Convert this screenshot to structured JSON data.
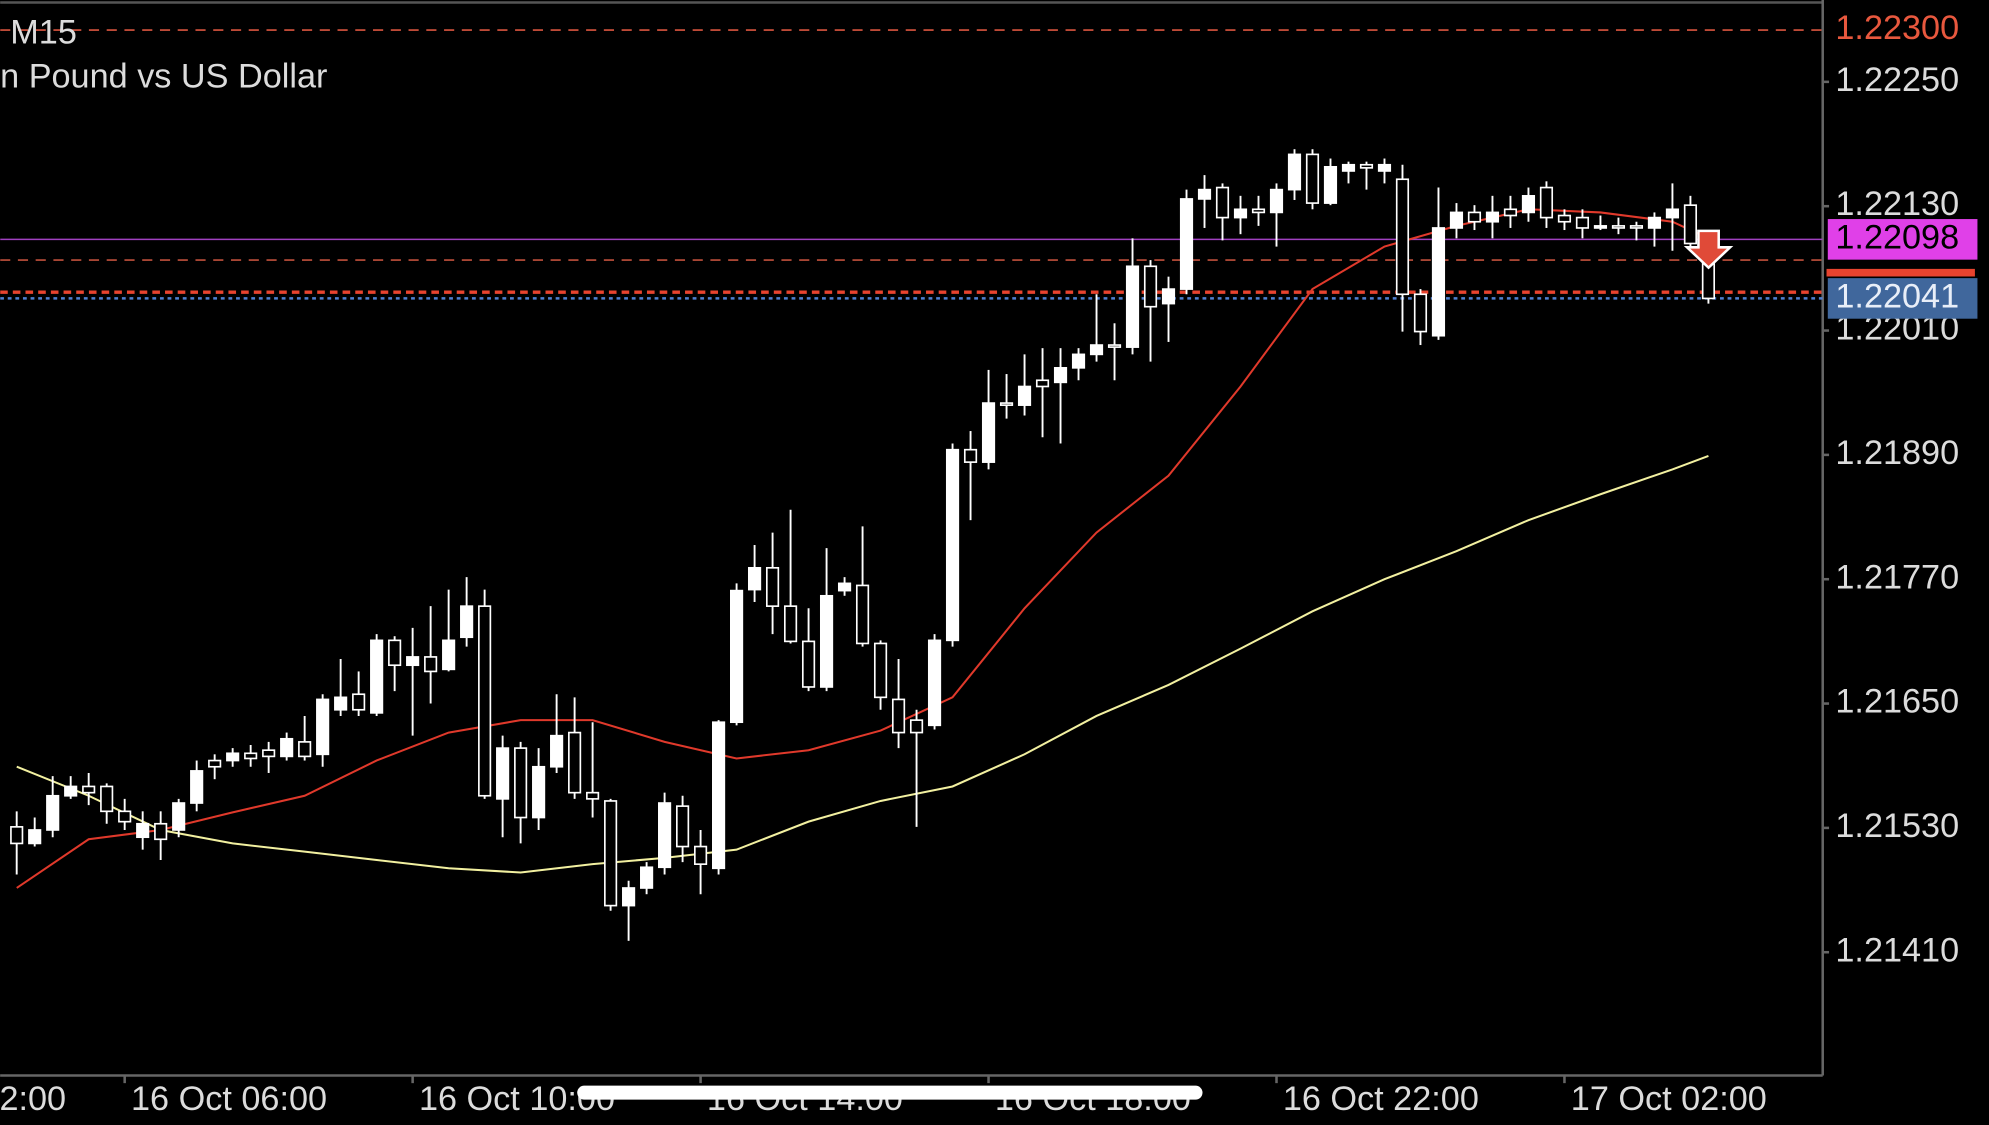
{
  "chart_data": {
    "type": "candlestick",
    "title": "M15",
    "subtitle": "n Pound vs US Dollar",
    "up_color": "#ffffff",
    "down_color": "#000000",
    "wick_color": "#ffffff",
    "open": [
      1.21531,
      1.21515,
      1.21528,
      1.21561,
      1.2157,
      1.2157,
      1.21546,
      1.21521,
      1.21534,
      1.21528,
      1.21554,
      1.21595,
      1.21595,
      1.21602,
      1.21605,
      1.21599,
      1.21613,
      1.21601,
      1.21644,
      1.21659,
      1.21641,
      1.21711,
      1.21687,
      1.21695,
      1.21683,
      1.21714,
      1.21744,
      1.21558,
      1.21607,
      1.2154,
      1.21589,
      1.21622,
      1.21564,
      1.21556,
      1.21455,
      1.21472,
      1.21492,
      1.21551,
      1.21512,
      1.21491,
      1.21632,
      1.2176,
      1.21781,
      1.21744,
      1.2171,
      1.21666,
      1.21759,
      1.21764,
      1.21708,
      1.21654,
      1.21634,
      1.21629,
      1.21711,
      1.21895,
      1.21883,
      1.2194,
      1.21938,
      1.21962,
      1.2196,
      1.21974,
      1.21987,
      1.21996,
      1.21994,
      1.22072,
      1.22036,
      1.2205,
      1.22137,
      1.22148,
      1.22119,
      1.22127,
      1.22124,
      1.22146,
      1.2218,
      1.22133,
      1.22164,
      1.2217,
      1.22164,
      1.22156,
      1.22045,
      1.22005,
      1.22109,
      1.22124,
      1.22115,
      1.22127,
      1.22124,
      1.22148,
      1.22121,
      1.22119,
      1.22109,
      1.22111,
      1.22111,
      1.22109,
      1.22119,
      1.22131,
      1.22094
    ],
    "high": [
      1.21546,
      1.2154,
      1.2158,
      1.2158,
      1.21583,
      1.21573,
      1.21558,
      1.21546,
      1.21546,
      1.21558,
      1.21595,
      1.21601,
      1.21607,
      1.2161,
      1.21613,
      1.21622,
      1.21638,
      1.21659,
      1.21693,
      1.21681,
      1.21717,
      1.21715,
      1.21723,
      1.21744,
      1.2176,
      1.21772,
      1.2176,
      1.21619,
      1.21613,
      1.21607,
      1.21659,
      1.21656,
      1.21632,
      1.21558,
      1.21479,
      1.21497,
      1.21564,
      1.21561,
      1.21528,
      1.21634,
      1.21766,
      1.21803,
      1.21815,
      1.21837,
      1.21742,
      1.218,
      1.21772,
      1.21821,
      1.21711,
      1.21693,
      1.21644,
      1.21717,
      1.21901,
      1.21913,
      1.21972,
      1.21968,
      1.21987,
      1.21993,
      1.21993,
      1.21993,
      1.22045,
      1.22017,
      1.22099,
      1.22078,
      1.22062,
      1.22146,
      1.2216,
      1.22152,
      1.2214,
      1.2214,
      1.22152,
      1.22185,
      1.22185,
      1.22176,
      1.22173,
      1.22173,
      1.22176,
      1.2217,
      1.2205,
      1.22148,
      1.22133,
      1.22131,
      1.2214,
      1.2214,
      1.22148,
      1.22154,
      1.22127,
      1.22127,
      1.22121,
      1.22119,
      1.22115,
      1.22124,
      1.22152,
      1.2214,
      1.22099
    ],
    "low": [
      1.21485,
      1.21512,
      1.21521,
      1.21558,
      1.21552,
      1.21534,
      1.21528,
      1.21509,
      1.21499,
      1.21521,
      1.21546,
      1.21577,
      1.21589,
      1.21589,
      1.21583,
      1.21595,
      1.21595,
      1.21589,
      1.21638,
      1.21638,
      1.21638,
      1.21662,
      1.21619,
      1.2165,
      1.21681,
      1.21705,
      1.21558,
      1.21521,
      1.21515,
      1.21528,
      1.21583,
      1.21558,
      1.2154,
      1.2145,
      1.21421,
      1.21466,
      1.21485,
      1.21497,
      1.21466,
      1.21485,
      1.21629,
      1.21748,
      1.21717,
      1.21708,
      1.21662,
      1.21662,
      1.21754,
      1.21705,
      1.21644,
      1.21607,
      1.21531,
      1.21625,
      1.21705,
      1.21827,
      1.21876,
      1.21925,
      1.21928,
      1.21907,
      1.21901,
      1.21962,
      1.2198,
      1.21962,
      1.21987,
      1.2198,
      1.21999,
      1.22045,
      1.22109,
      1.22097,
      1.22103,
      1.22111,
      1.22091,
      1.22136,
      1.22127,
      1.22131,
      1.22152,
      1.22146,
      1.22152,
      1.22009,
      1.21996,
      1.22001,
      1.22099,
      1.22107,
      1.22099,
      1.22109,
      1.22115,
      1.22109,
      1.22107,
      1.22099,
      1.22107,
      1.22103,
      1.22097,
      1.22091,
      1.22087,
      1.22087,
      1.22036
    ],
    "close": [
      1.21515,
      1.21528,
      1.21561,
      1.2157,
      1.21564,
      1.21546,
      1.21536,
      1.21534,
      1.21519,
      1.21554,
      1.21585,
      1.21589,
      1.21602,
      1.21597,
      1.21599,
      1.21616,
      1.21599,
      1.21654,
      1.21656,
      1.21644,
      1.21711,
      1.21687,
      1.21695,
      1.21681,
      1.21711,
      1.21744,
      1.21561,
      1.21607,
      1.2154,
      1.21589,
      1.21619,
      1.21564,
      1.21558,
      1.21455,
      1.21472,
      1.21492,
      1.21554,
      1.21512,
      1.21495,
      1.21632,
      1.21759,
      1.21781,
      1.21744,
      1.2171,
      1.21666,
      1.21754,
      1.21766,
      1.21708,
      1.21656,
      1.21622,
      1.21622,
      1.21711,
      1.21895,
      1.21883,
      1.2194,
      1.21938,
      1.21956,
      1.21956,
      1.21974,
      1.21987,
      1.21996,
      1.21994,
      1.22072,
      1.22033,
      1.2205,
      1.22137,
      1.22146,
      1.22119,
      1.22127,
      1.22124,
      1.22146,
      1.2218,
      1.22133,
      1.22168,
      1.2217,
      1.22167,
      1.2217,
      1.22045,
      1.22009,
      1.22109,
      1.22124,
      1.22115,
      1.22124,
      1.22121,
      1.2214,
      1.22119,
      1.22115,
      1.22109,
      1.22111,
      1.22109,
      1.22109,
      1.22119,
      1.22127,
      1.22094,
      1.22041
    ],
    "series": [
      {
        "color": "#e0392b",
        "x": [
          0,
          4,
          8,
          12,
          16,
          20,
          24,
          28,
          32,
          36,
          40,
          44,
          48,
          52,
          56,
          60,
          64,
          68,
          72,
          76,
          80,
          84,
          88,
          92,
          94
        ],
        "values": [
          1.21472,
          1.21519,
          1.21528,
          1.21545,
          1.21561,
          1.21595,
          1.21622,
          1.21634,
          1.21634,
          1.21613,
          1.21597,
          1.21605,
          1.21624,
          1.21656,
          1.21742,
          1.21815,
          1.2187,
          1.21956,
          1.2205,
          1.22091,
          1.22111,
          1.22127,
          1.22124,
          1.22115,
          1.22099
        ]
      },
      {
        "color": "#f2f0a0",
        "x": [
          0,
          4,
          8,
          12,
          16,
          20,
          24,
          28,
          32,
          36,
          40,
          44,
          48,
          52,
          56,
          60,
          64,
          68,
          72,
          76,
          80,
          84,
          88,
          92,
          94
        ],
        "values": [
          1.21589,
          1.21561,
          1.21528,
          1.21515,
          1.21507,
          1.21499,
          1.21491,
          1.21487,
          1.21495,
          1.21501,
          1.21509,
          1.21536,
          1.21556,
          1.2157,
          1.21601,
          1.21638,
          1.21668,
          1.21703,
          1.21739,
          1.2177,
          1.21797,
          1.21827,
          1.21852,
          1.21876,
          1.21889
        ]
      }
    ],
    "levels": [
      {
        "value": 1.223,
        "label": "1.22300",
        "color": "#d9553f",
        "style": "dashed",
        "label_color": "#e8583e"
      },
      {
        "value": 1.22078,
        "color": "#c0503c",
        "style": "dashed"
      },
      {
        "value": 1.22098,
        "label": "1.22098",
        "color": "#a040c0",
        "style": "solid",
        "label_color": "#000000",
        "label_background": "#e040e8"
      },
      {
        "value": 1.22047,
        "color": "#e8432e",
        "style": "dashed-thick"
      },
      {
        "value": 1.22041,
        "label": "1.22041",
        "color": "#4f7fd0",
        "style": "dotted",
        "label_color": "#e8eef8",
        "label_background": "#40679c"
      }
    ],
    "xlim": [
      -0.92,
      100.35
    ],
    "xticks": [
      {
        "value": -10,
        "label": "2:00"
      },
      {
        "value": 6,
        "label": "16 Oct 06:00"
      },
      {
        "value": 22,
        "label": "16 Oct 10:00"
      },
      {
        "value": 38,
        "label": "16 Oct 14:00"
      },
      {
        "value": 54,
        "label": "16 Oct 18:00"
      },
      {
        "value": 70,
        "label": "16 Oct 22:00"
      },
      {
        "value": 86,
        "label": "17 Oct 02:00"
      }
    ],
    "ylim": [
      1.21291,
      1.22329
    ],
    "yticks": [
      {
        "value": 1.2141,
        "label": "1.21410"
      },
      {
        "value": 1.2153,
        "label": "1.21530"
      },
      {
        "value": 1.2165,
        "label": "1.21650"
      },
      {
        "value": 1.2177,
        "label": "1.21770"
      },
      {
        "value": 1.2189,
        "label": "1.21890"
      },
      {
        "value": 1.2201,
        "label": "1.22010"
      },
      {
        "value": 1.2213,
        "label": "1.22130"
      },
      {
        "value": 1.2225,
        "label": "1.22250"
      }
    ]
  }
}
